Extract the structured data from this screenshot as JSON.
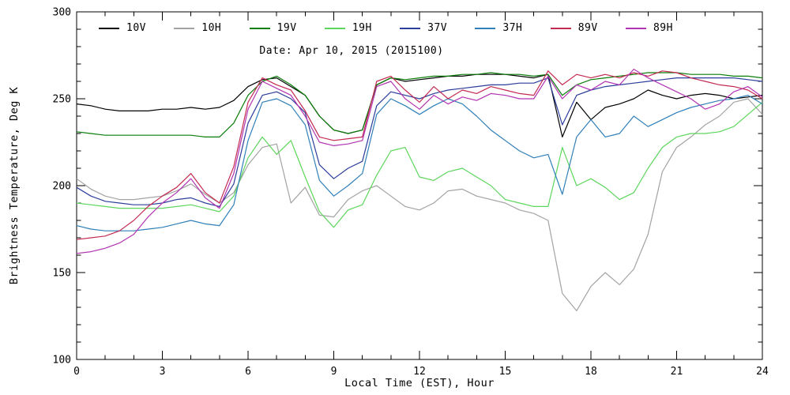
{
  "chart_data": {
    "type": "line",
    "title": "Date: Apr 10, 2015 (2015100)",
    "xlabel": "Local Time (EST), Hour",
    "ylabel": "Brightness Temperature, Deg K",
    "xlim": [
      0,
      24
    ],
    "ylim": [
      100,
      300
    ],
    "xticks": [
      0,
      3,
      6,
      9,
      12,
      15,
      18,
      21,
      24
    ],
    "yticks": [
      100,
      150,
      200,
      250,
      300
    ],
    "x_minor_step": 1,
    "y_minor_step": 10,
    "grid": false,
    "legend_position": "top-inside",
    "axis_color": "#000000",
    "x": [
      0,
      0.5,
      1,
      1.5,
      2,
      2.5,
      3,
      3.5,
      4,
      4.5,
      5,
      5.5,
      6,
      6.5,
      7,
      7.5,
      8,
      8.5,
      9,
      9.5,
      10,
      10.5,
      11,
      11.5,
      12,
      12.5,
      13,
      13.5,
      14,
      14.5,
      15,
      15.5,
      16,
      16.5,
      17,
      17.5,
      18,
      18.5,
      19,
      19.5,
      20,
      20.5,
      21,
      21.5,
      22,
      22.5,
      23,
      23.5,
      24
    ],
    "series": [
      {
        "name": "10V",
        "color": "#000000",
        "values": [
          247,
          246,
          244,
          243,
          243,
          243,
          244,
          244,
          245,
          244,
          245,
          249,
          257,
          261,
          262,
          257,
          252,
          240,
          232,
          230,
          232,
          258,
          262,
          260,
          261,
          262,
          263,
          263,
          264,
          264,
          264,
          263,
          262,
          264,
          228,
          248,
          238,
          245,
          247,
          250,
          255,
          252,
          250,
          252,
          253,
          252,
          250,
          251,
          252
        ]
      },
      {
        "name": "10H",
        "color": "#a3a3a3",
        "values": [
          204,
          198,
          194,
          192,
          192,
          193,
          194,
          197,
          201,
          195,
          190,
          196,
          212,
          222,
          224,
          190,
          199,
          183,
          182,
          192,
          197,
          200,
          194,
          188,
          186,
          190,
          197,
          198,
          194,
          192,
          190,
          186,
          184,
          180,
          138,
          128,
          142,
          150,
          143,
          152,
          172,
          208,
          222,
          228,
          235,
          240,
          248,
          250,
          241
        ]
      },
      {
        "name": "19V",
        "color": "#0a7d0a",
        "values": [
          231,
          230,
          229,
          229,
          229,
          229,
          229,
          229,
          229,
          228,
          228,
          236,
          252,
          260,
          263,
          258,
          252,
          240,
          232,
          230,
          232,
          258,
          262,
          261,
          262,
          263,
          263,
          264,
          264,
          265,
          264,
          264,
          263,
          264,
          252,
          258,
          261,
          262,
          263,
          264,
          265,
          265,
          265,
          264,
          264,
          264,
          263,
          263,
          262
        ]
      },
      {
        "name": "19H",
        "color": "#5cd65c",
        "values": [
          190,
          189,
          188,
          187,
          187,
          187,
          187,
          188,
          189,
          187,
          185,
          194,
          216,
          228,
          218,
          226,
          205,
          185,
          176,
          186,
          189,
          206,
          220,
          222,
          205,
          203,
          208,
          210,
          205,
          200,
          192,
          190,
          188,
          188,
          222,
          200,
          204,
          199,
          192,
          196,
          210,
          222,
          228,
          230,
          230,
          231,
          234,
          241,
          248
        ]
      },
      {
        "name": "37V",
        "color": "#2c3d9b",
        "values": [
          199,
          194,
          191,
          190,
          189,
          189,
          190,
          192,
          193,
          190,
          188,
          201,
          236,
          252,
          254,
          250,
          242,
          212,
          204,
          210,
          214,
          246,
          254,
          252,
          250,
          253,
          255,
          256,
          257,
          258,
          258,
          259,
          259,
          262,
          235,
          252,
          255,
          257,
          258,
          259,
          260,
          261,
          262,
          262,
          262,
          262,
          262,
          261,
          260
        ]
      },
      {
        "name": "37H",
        "color": "#2f7fb8",
        "values": [
          177,
          175,
          174,
          174,
          174,
          175,
          176,
          178,
          180,
          178,
          177,
          189,
          226,
          248,
          250,
          246,
          235,
          203,
          194,
          200,
          207,
          241,
          250,
          246,
          241,
          246,
          250,
          247,
          240,
          232,
          226,
          220,
          216,
          218,
          195,
          228,
          238,
          228,
          230,
          240,
          234,
          238,
          242,
          245,
          247,
          249,
          250,
          252,
          247
        ]
      },
      {
        "name": "89V",
        "color": "#c32a52",
        "values": [
          169,
          170,
          171,
          174,
          180,
          188,
          194,
          199,
          207,
          196,
          190,
          211,
          248,
          262,
          258,
          255,
          243,
          228,
          226,
          227,
          228,
          260,
          263,
          255,
          248,
          257,
          250,
          255,
          253,
          257,
          255,
          253,
          252,
          266,
          258,
          264,
          262,
          264,
          262,
          265,
          263,
          266,
          265,
          262,
          260,
          258,
          257,
          255,
          250
        ]
      },
      {
        "name": "89H",
        "color": "#b233b2",
        "values": [
          161,
          162,
          164,
          167,
          172,
          182,
          190,
          196,
          204,
          193,
          187,
          207,
          244,
          260,
          256,
          252,
          240,
          225,
          223,
          224,
          226,
          257,
          260,
          250,
          244,
          252,
          247,
          251,
          249,
          253,
          252,
          250,
          250,
          263,
          250,
          258,
          255,
          260,
          258,
          267,
          262,
          258,
          254,
          250,
          244,
          247,
          254,
          257,
          251
        ]
      }
    ]
  }
}
